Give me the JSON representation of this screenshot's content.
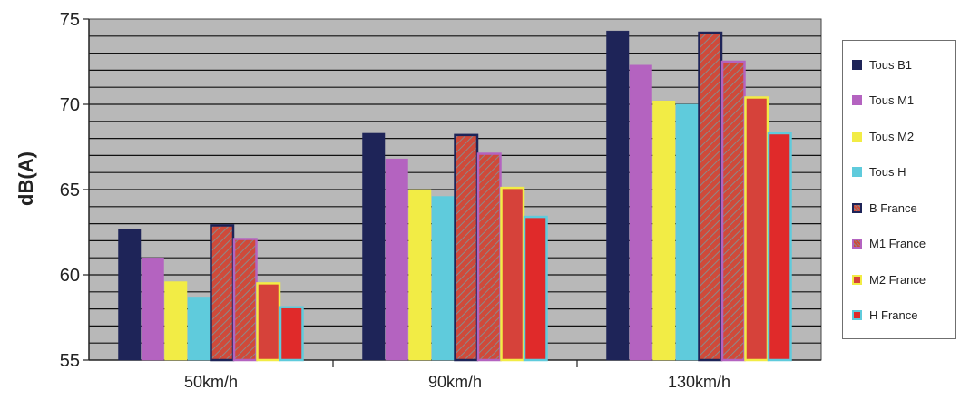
{
  "chart_data": {
    "type": "bar",
    "title": "",
    "xlabel": "",
    "ylabel": "dB(A)",
    "ylim": [
      55,
      75
    ],
    "yticks": [
      55,
      60,
      65,
      70,
      75
    ],
    "grid": true,
    "legend_position": "right",
    "categories": [
      "50km/h",
      "90km/h",
      "130km/h"
    ],
    "series": [
      {
        "name": "Tous B1",
        "color": "#1e2458",
        "hatched": false,
        "border": "#1e2458",
        "values": [
          62.7,
          68.3,
          74.3
        ]
      },
      {
        "name": "Tous M1",
        "color": "#b463c0",
        "hatched": false,
        "border": "#b463c0",
        "values": [
          61.0,
          66.8,
          72.3
        ]
      },
      {
        "name": "Tous M2",
        "color": "#f2ec45",
        "hatched": false,
        "border": "#f2ec45",
        "values": [
          59.6,
          65.0,
          70.2
        ]
      },
      {
        "name": "Tous H",
        "color": "#5fcbdc",
        "hatched": false,
        "border": "#5fcbdc",
        "values": [
          58.7,
          64.6,
          70.0
        ]
      },
      {
        "name": "B France",
        "color": "#cf4a3a",
        "hatched": true,
        "border": "#1e2458",
        "values": [
          62.9,
          68.2,
          74.2
        ]
      },
      {
        "name": "M1 France",
        "color": "#cf4a3a",
        "hatched": true,
        "border": "#b463c0",
        "values": [
          62.1,
          67.1,
          72.5
        ]
      },
      {
        "name": "M2 France",
        "color": "#d6423a",
        "hatched": false,
        "border": "#f2ec45",
        "values": [
          59.5,
          65.1,
          70.4
        ]
      },
      {
        "name": "H France",
        "color": "#e02a2a",
        "hatched": false,
        "border": "#5fcbdc",
        "values": [
          58.1,
          63.4,
          68.3
        ]
      }
    ]
  }
}
